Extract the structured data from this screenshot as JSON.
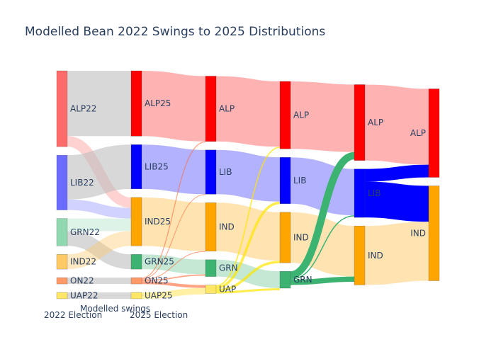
{
  "chart_data": {
    "type": "sankey",
    "title": "Modelled Bean 2022 Swings to 2025 Distributions",
    "stage_labels": [
      "2022 Election",
      "Modelled swings",
      "2025 Election"
    ],
    "columns": [
      [
        {
          "id": "ALP22",
          "label": "ALP22",
          "value": 36,
          "color": "#ff6b6b"
        },
        {
          "id": "LIB22",
          "label": "LIB22",
          "value": 26,
          "color": "#6b6bff"
        },
        {
          "id": "GRN22",
          "label": "GRN22",
          "value": 13,
          "color": "#8fd8b0"
        },
        {
          "id": "IND22",
          "label": "IND22",
          "value": 7,
          "color": "#ffc966"
        },
        {
          "id": "ON22",
          "label": "ON22",
          "value": 3,
          "color": "#ff9966"
        },
        {
          "id": "UAP22",
          "label": "UAP22",
          "value": 3,
          "color": "#ffe666"
        }
      ],
      [
        {
          "id": "ALP25",
          "label": "ALP25",
          "value": 31,
          "color": "#ff0000"
        },
        {
          "id": "LIB25",
          "label": "LIB25",
          "value": 21,
          "color": "#0000ff"
        },
        {
          "id": "IND25",
          "label": "IND25",
          "value": 23,
          "color": "#ffa500"
        },
        {
          "id": "GRN25",
          "label": "GRN25",
          "value": 7,
          "color": "#3cb371"
        },
        {
          "id": "ON25",
          "label": "ON25",
          "value": 3,
          "color": "#ff9966"
        },
        {
          "id": "UAP25",
          "label": "UAP25",
          "value": 3,
          "color": "#ffe666"
        }
      ],
      [
        {
          "id": "ALP_r1",
          "label": "ALP",
          "value": 31,
          "color": "#ff0000"
        },
        {
          "id": "LIB_r1",
          "label": "LIB",
          "value": 21,
          "color": "#0000ff"
        },
        {
          "id": "IND_r1",
          "label": "IND",
          "value": 23,
          "color": "#ffa500"
        },
        {
          "id": "GRN_r1",
          "label": "GRN",
          "value": 8,
          "color": "#3cb371"
        },
        {
          "id": "UAP_r1",
          "label": "UAP",
          "value": 4,
          "color": "#ffe666"
        }
      ],
      [
        {
          "id": "ALP_r2",
          "label": "ALP",
          "value": 32,
          "color": "#ff0000"
        },
        {
          "id": "LIB_r2",
          "label": "LIB",
          "value": 22,
          "color": "#0000ff"
        },
        {
          "id": "IND_r2",
          "label": "IND",
          "value": 24,
          "color": "#ffa500"
        },
        {
          "id": "GRN_r2",
          "label": "GRN",
          "value": 8,
          "color": "#3cb371"
        }
      ],
      [
        {
          "id": "ALP_r3",
          "label": "ALP",
          "value": 36,
          "color": "#ff0000"
        },
        {
          "id": "LIB_r3",
          "label": "LIB",
          "value": 23,
          "color": "#0000ff"
        },
        {
          "id": "IND_r3",
          "label": "IND",
          "value": 28,
          "color": "#ffa500"
        }
      ],
      [
        {
          "id": "ALP_r4",
          "label": "ALP",
          "value": 42,
          "color": "#ff0000"
        },
        {
          "id": "IND_r4",
          "label": "IND",
          "value": 45,
          "color": "#ffa500"
        }
      ]
    ],
    "links": [
      {
        "source": "ALP22",
        "target": "ALP25",
        "value": 31,
        "color": "rgba(190,190,190,0.6)"
      },
      {
        "source": "ALP22",
        "target": "IND25",
        "value": 5,
        "color": "rgba(255,107,107,0.3)"
      },
      {
        "source": "LIB22",
        "target": "LIB25",
        "value": 21,
        "color": "rgba(190,190,190,0.6)"
      },
      {
        "source": "LIB22",
        "target": "IND25",
        "value": 5,
        "color": "rgba(107,107,255,0.3)"
      },
      {
        "source": "GRN22",
        "target": "IND25",
        "value": 6,
        "color": "rgba(143,216,176,0.3)"
      },
      {
        "source": "GRN22",
        "target": "GRN25",
        "value": 7,
        "color": "rgba(190,190,190,0.6)"
      },
      {
        "source": "IND22",
        "target": "IND25",
        "value": 7,
        "color": "rgba(255,201,102,0.4)"
      },
      {
        "source": "ON22",
        "target": "ON25",
        "value": 3,
        "color": "rgba(190,190,190,0.6)"
      },
      {
        "source": "UAP22",
        "target": "UAP25",
        "value": 3,
        "color": "rgba(190,190,190,0.6)"
      },
      {
        "source": "ALP25",
        "target": "ALP_r1",
        "value": 31,
        "color": "rgba(255,0,0,0.3)"
      },
      {
        "source": "LIB25",
        "target": "LIB_r1",
        "value": 21,
        "color": "rgba(0,0,255,0.3)"
      },
      {
        "source": "IND25",
        "target": "IND_r1",
        "value": 23,
        "color": "rgba(255,165,0,0.3)"
      },
      {
        "source": "GRN25",
        "target": "GRN_r1",
        "value": 7,
        "color": "rgba(60,179,113,0.3)"
      },
      {
        "source": "ON25",
        "target": "ALP_r1",
        "value": 0.4,
        "color": "rgba(255,102,51,0.6)"
      },
      {
        "source": "ON25",
        "target": "LIB_r1",
        "value": 0.3,
        "color": "rgba(255,102,51,0.6)"
      },
      {
        "source": "ON25",
        "target": "IND_r1",
        "value": 0.3,
        "color": "rgba(255,102,51,0.6)"
      },
      {
        "source": "ON25",
        "target": "GRN_r1",
        "value": 0.6,
        "color": "rgba(255,102,51,0.6)"
      },
      {
        "source": "ON25",
        "target": "UAP_r1",
        "value": 1.4,
        "color": "rgba(255,102,51,0.6)"
      },
      {
        "source": "UAP25",
        "target": "UAP_r1",
        "value": 3,
        "color": "rgba(255,230,102,0.6)"
      },
      {
        "source": "ALP_r1",
        "target": "ALP_r2",
        "value": 31,
        "color": "rgba(255,0,0,0.3)"
      },
      {
        "source": "LIB_r1",
        "target": "LIB_r2",
        "value": 21,
        "color": "rgba(0,0,255,0.3)"
      },
      {
        "source": "IND_r1",
        "target": "IND_r2",
        "value": 23,
        "color": "rgba(255,165,0,0.3)"
      },
      {
        "source": "GRN_r1",
        "target": "GRN_r2",
        "value": 8,
        "color": "rgba(60,179,113,0.3)"
      },
      {
        "source": "UAP_r1",
        "target": "ALP_r2",
        "value": 0.6,
        "color": "rgba(255,230,0,0.7)"
      },
      {
        "source": "UAP_r1",
        "target": "LIB_r2",
        "value": 1.2,
        "color": "rgba(255,230,0,0.7)"
      },
      {
        "source": "UAP_r1",
        "target": "IND_r2",
        "value": 1.2,
        "color": "rgba(255,230,0,0.7)"
      },
      {
        "source": "UAP_r1",
        "target": "GRN_r2",
        "value": 1,
        "color": "rgba(255,230,0,0.7)"
      },
      {
        "source": "ALP_r2",
        "target": "ALP_r3",
        "value": 32,
        "color": "rgba(255,0,0,0.3)"
      },
      {
        "source": "LIB_r2",
        "target": "LIB_r3",
        "value": 22,
        "color": "rgba(0,0,255,0.3)"
      },
      {
        "source": "IND_r2",
        "target": "IND_r3",
        "value": 24,
        "color": "rgba(255,165,0,0.3)"
      },
      {
        "source": "GRN_r2",
        "target": "ALP_r3",
        "value": 3.5,
        "color": "rgba(60,179,113,1)"
      },
      {
        "source": "GRN_r2",
        "target": "LIB_r3",
        "value": 0.5,
        "color": "rgba(60,179,113,1)"
      },
      {
        "source": "GRN_r2",
        "target": "IND_r3",
        "value": 2.5,
        "color": "rgba(60,179,113,1)"
      },
      {
        "source": "ALP_r3",
        "target": "ALP_r4",
        "value": 36,
        "color": "rgba(255,0,0,0.3)"
      },
      {
        "source": "LIB_r3",
        "target": "ALP_r4",
        "value": 6,
        "color": "rgba(0,0,255,1)"
      },
      {
        "source": "LIB_r3",
        "target": "IND_r4",
        "value": 17,
        "color": "rgba(0,0,255,1)"
      },
      {
        "source": "IND_r3",
        "target": "IND_r4",
        "value": 28,
        "color": "rgba(255,165,0,0.3)"
      }
    ]
  }
}
